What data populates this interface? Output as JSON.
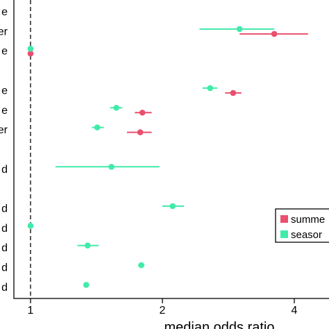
{
  "chart_data": {
    "type": "scatter",
    "title": "",
    "xlabel": "median odds ratio",
    "ylabel": "",
    "xlim": [
      0.75,
      4.5
    ],
    "xticks": [
      1,
      2,
      4
    ],
    "reference_line": 1,
    "grid": false,
    "legend_position": "right",
    "rows": [
      {
        "label": "e"
      },
      {
        "label": "er"
      },
      {
        "label": "e"
      },
      {
        "label": ""
      },
      {
        "label": "e"
      },
      {
        "label": "e"
      },
      {
        "label": "er"
      },
      {
        "label": ""
      },
      {
        "label": "d"
      },
      {
        "label": ""
      },
      {
        "label": "d"
      },
      {
        "label": "d"
      },
      {
        "label": "d"
      },
      {
        "label": "d"
      },
      {
        "label": "d"
      }
    ],
    "series": [
      {
        "name": "summe",
        "color": "#EB4F6E",
        "points": [
          {
            "row": 1,
            "x": 3.6,
            "lo": 3.0,
            "hi": 4.3
          },
          {
            "row": 2,
            "x": 1.0,
            "lo": 1.0,
            "hi": 1.0
          },
          {
            "row": 4,
            "x": 2.9,
            "lo": 2.78,
            "hi": 3.03
          },
          {
            "row": 5,
            "x": 1.8,
            "lo": 1.73,
            "hi": 1.89
          },
          {
            "row": 6,
            "x": 1.78,
            "lo": 1.66,
            "hi": 1.89
          }
        ]
      },
      {
        "name": "seasor",
        "color": "#40EBA9",
        "points": [
          {
            "row": 1,
            "x": 3.0,
            "lo": 2.43,
            "hi": 3.6
          },
          {
            "row": 2,
            "x": 1.0,
            "lo": 1.0,
            "hi": 1.0
          },
          {
            "row": 4,
            "x": 2.57,
            "lo": 2.47,
            "hi": 2.67
          },
          {
            "row": 5,
            "x": 1.57,
            "lo": 1.52,
            "hi": 1.62
          },
          {
            "row": 6,
            "x": 1.42,
            "lo": 1.38,
            "hi": 1.47
          },
          {
            "row": 8,
            "x": 1.53,
            "lo": 1.14,
            "hi": 1.97
          },
          {
            "row": 10,
            "x": 2.11,
            "lo": 2.0,
            "hi": 2.24
          },
          {
            "row": 11,
            "x": 1.0,
            "lo": 1.0,
            "hi": 1.0
          },
          {
            "row": 12,
            "x": 1.35,
            "lo": 1.28,
            "hi": 1.43
          },
          {
            "row": 13,
            "x": 1.79,
            "lo": 1.76,
            "hi": 1.82
          },
          {
            "row": 14,
            "x": 1.34,
            "lo": 1.33,
            "hi": 1.35
          }
        ]
      }
    ]
  }
}
